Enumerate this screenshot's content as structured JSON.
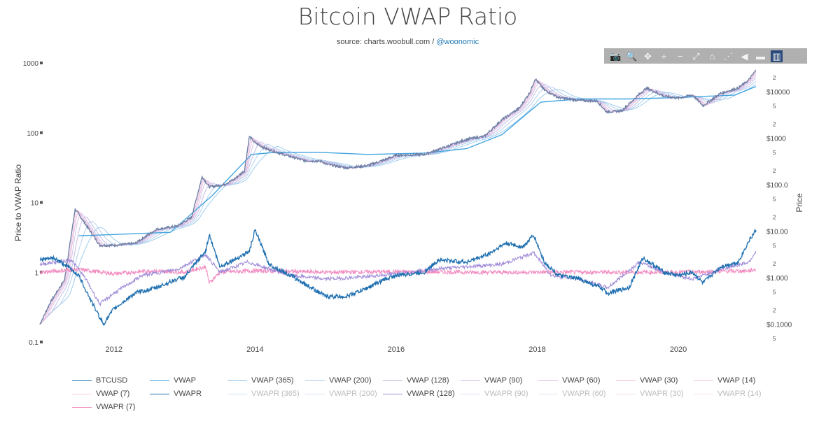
{
  "title": "Bitcoin VWAP Ratio",
  "source": {
    "prefix": "source: charts.woobull.com / ",
    "handle": "@woonomic"
  },
  "modebar": {
    "buttons": [
      {
        "name": "camera-icon",
        "glyph": "📷"
      },
      {
        "name": "zoom-icon",
        "glyph": "🔍"
      },
      {
        "name": "pan-icon",
        "glyph": "✥"
      },
      {
        "name": "zoom-in-icon",
        "glyph": "+"
      },
      {
        "name": "zoom-out-icon",
        "glyph": "−"
      },
      {
        "name": "autoscale-icon",
        "glyph": "⤢"
      },
      {
        "name": "home-icon",
        "glyph": "⌂"
      },
      {
        "name": "spike-lines-icon",
        "glyph": "⋰"
      },
      {
        "name": "hover-closest-icon",
        "glyph": "◀"
      },
      {
        "name": "hover-compare-icon",
        "glyph": "▬"
      },
      {
        "name": "chart-studio-icon",
        "glyph": "▥"
      }
    ]
  },
  "chart_data": {
    "type": "line",
    "ylabel_left": "Price to VWAP Ratio",
    "ylabel_right": "Price",
    "x_ticks": [
      "2012",
      "2014",
      "2016",
      "2018",
      "2020"
    ],
    "left_ticks": [
      "1000",
      "100",
      "10",
      "1",
      "0.1"
    ],
    "right_ticks": [
      "$10000",
      "$1000",
      "$100.0",
      "$10.00",
      "$1.000",
      "$0.1000"
    ],
    "right_minor_ticks": [
      "5",
      "2"
    ],
    "xlim": [
      2011.0,
      2021.2
    ],
    "ylim_left": [
      0.1,
      1000
    ],
    "ylim_right": [
      0.0417,
      41700
    ],
    "scale": "log",
    "colors": {
      "btcusd": "#1a75b5",
      "vwap": "#42a5e0",
      "vwapr": "#1e6fb0",
      "vwapr128": "#9f8ad8",
      "vwapr7": "#f28bc0",
      "mid": "#c7b5e6"
    },
    "series": [
      {
        "name": "BTCUSD",
        "axis": "right",
        "x": [
          2010.95,
          2011.1,
          2011.3,
          2011.45,
          2011.6,
          2011.8,
          2012.0,
          2012.3,
          2012.6,
          2012.9,
          2013.1,
          2013.25,
          2013.35,
          2013.55,
          2013.7,
          2013.85,
          2013.92,
          2014.0,
          2014.15,
          2014.4,
          2014.7,
          2014.95,
          2015.0,
          2015.3,
          2015.6,
          2015.85,
          2016.0,
          2016.4,
          2016.7,
          2017.0,
          2017.25,
          2017.5,
          2017.75,
          2017.9,
          2017.97,
          2018.1,
          2018.3,
          2018.6,
          2018.85,
          2018.98,
          2019.2,
          2019.45,
          2019.55,
          2019.8,
          2020.0,
          2020.2,
          2020.35,
          2020.6,
          2020.85,
          2021.0,
          2021.1
        ],
        "y": [
          0.1,
          0.3,
          0.9,
          30,
          14,
          5,
          5,
          5.5,
          11,
          13,
          20,
          150,
          90,
          100,
          130,
          200,
          1100,
          800,
          600,
          450,
          330,
          320,
          280,
          230,
          260,
          350,
          430,
          450,
          650,
          950,
          1100,
          2500,
          4500,
          10000,
          19000,
          11000,
          7500,
          6500,
          6300,
          3700,
          3900,
          9000,
          12000,
          8000,
          7300,
          8600,
          5000,
          9300,
          12000,
          18000,
          29000
        ]
      },
      {
        "name": "VWAP",
        "axis": "right",
        "x": [
          2011.5,
          2012.8,
          2013.4,
          2013.95,
          2014.3,
          2014.9,
          2015.6,
          2016.4,
          2017.0,
          2017.5,
          2018.05,
          2018.6,
          2019.3,
          2020.0,
          2020.8,
          2021.1
        ],
        "y": [
          8,
          9.5,
          60,
          450,
          500,
          500,
          450,
          480,
          600,
          1200,
          6000,
          7000,
          7000,
          7500,
          8500,
          13000
        ]
      },
      {
        "name": "VWAPR",
        "axis": "left",
        "x": [
          2010.95,
          2011.15,
          2011.35,
          2011.5,
          2011.7,
          2011.85,
          2012.0,
          2012.3,
          2012.6,
          2012.9,
          2013.0,
          2013.3,
          2013.35,
          2013.5,
          2013.75,
          2013.92,
          2014.0,
          2014.2,
          2014.5,
          2014.8,
          2015.0,
          2015.3,
          2015.6,
          2015.85,
          2016.0,
          2016.4,
          2016.6,
          2017.0,
          2017.3,
          2017.55,
          2017.8,
          2017.95,
          2018.1,
          2018.3,
          2018.6,
          2018.9,
          2019.0,
          2019.3,
          2019.5,
          2019.8,
          2020.0,
          2020.2,
          2020.35,
          2020.6,
          2020.85,
          2021.0,
          2021.1
        ],
        "y": [
          1.5,
          1.6,
          1.2,
          0.9,
          0.35,
          0.18,
          0.3,
          0.5,
          0.6,
          0.8,
          0.85,
          2.0,
          3.5,
          1.2,
          1.6,
          2.0,
          4.0,
          1.3,
          0.9,
          0.6,
          0.45,
          0.45,
          0.6,
          0.8,
          0.9,
          1.0,
          1.5,
          1.4,
          1.8,
          2.6,
          2.3,
          3.4,
          1.4,
          0.9,
          0.8,
          0.6,
          0.5,
          0.6,
          1.6,
          1.0,
          0.9,
          1.0,
          0.7,
          1.2,
          1.4,
          2.8,
          4.0
        ]
      },
      {
        "name": "VWAPR (128)",
        "axis": "left",
        "x": [
          2010.95,
          2011.4,
          2011.6,
          2011.8,
          2012.0,
          2012.4,
          2012.9,
          2013.3,
          2013.5,
          2013.9,
          2014.1,
          2014.5,
          2015.0,
          2015.5,
          2016.0,
          2016.5,
          2017.0,
          2017.5,
          2017.95,
          2018.2,
          2018.6,
          2019.0,
          2019.45,
          2019.8,
          2020.2,
          2020.6,
          2021.0,
          2021.1
        ],
        "y": [
          1.3,
          1.5,
          0.8,
          0.35,
          0.5,
          0.9,
          1.1,
          1.8,
          1.0,
          1.4,
          1.2,
          0.9,
          0.8,
          0.85,
          0.95,
          1.1,
          1.2,
          1.3,
          1.9,
          0.9,
          0.8,
          0.6,
          1.4,
          1.0,
          0.8,
          1.1,
          1.4,
          2.0
        ]
      },
      {
        "name": "VWAPR (7)",
        "axis": "left",
        "x": [
          2010.95,
          2011.5,
          2012.0,
          2012.5,
          2013.0,
          2013.3,
          2013.35,
          2013.5,
          2014.0,
          2015.0,
          2016.0,
          2017.0,
          2018.0,
          2019.0,
          2020.0,
          2021.0,
          2021.1
        ],
        "y": [
          1.0,
          1.1,
          0.95,
          1.05,
          1.0,
          1.2,
          0.7,
          1.0,
          1.05,
          1.0,
          1.02,
          1.0,
          1.0,
          1.0,
          1.0,
          1.05,
          1.1
        ]
      }
    ],
    "legend": [
      {
        "label": "BTCUSD",
        "color": "#1a75b5",
        "dim": false
      },
      {
        "label": "VWAP",
        "color": "#42a5e0",
        "dim": false
      },
      {
        "label": "VWAP (365)",
        "color": "#8cc4ec",
        "dim": false
      },
      {
        "label": "VWAP (200)",
        "color": "#a7c8ec",
        "dim": false
      },
      {
        "label": "VWAP (128)",
        "color": "#b9b2e0",
        "dim": false
      },
      {
        "label": "VWAP (90)",
        "color": "#cdb8e6",
        "dim": false
      },
      {
        "label": "VWAP (60)",
        "color": "#e2b4dc",
        "dim": false
      },
      {
        "label": "VWAP (30)",
        "color": "#efbad8",
        "dim": false
      },
      {
        "label": "VWAP (14)",
        "color": "#f4c4dc",
        "dim": false
      },
      {
        "label": "VWAP (7)",
        "color": "#f6cde2",
        "dim": false
      },
      {
        "label": "VWAPR",
        "color": "#1e6fb0",
        "dim": false
      },
      {
        "label": "VWAPR (365)",
        "color": "#cfe2f5",
        "dim": true
      },
      {
        "label": "VWAPR (200)",
        "color": "#d8e2f4",
        "dim": true
      },
      {
        "label": "VWAPR (128)",
        "color": "#9f8ad8",
        "dim": false
      },
      {
        "label": "VWAPR (90)",
        "color": "#e3dcf3",
        "dim": true
      },
      {
        "label": "VWAPR (60)",
        "color": "#ece0f3",
        "dim": true
      },
      {
        "label": "VWAPR (30)",
        "color": "#f6dcea",
        "dim": true
      },
      {
        "label": "VWAPR (14)",
        "color": "#f9e0ec",
        "dim": true
      },
      {
        "label": "VWAPR (7)",
        "color": "#f28bc0",
        "dim": false
      }
    ]
  }
}
